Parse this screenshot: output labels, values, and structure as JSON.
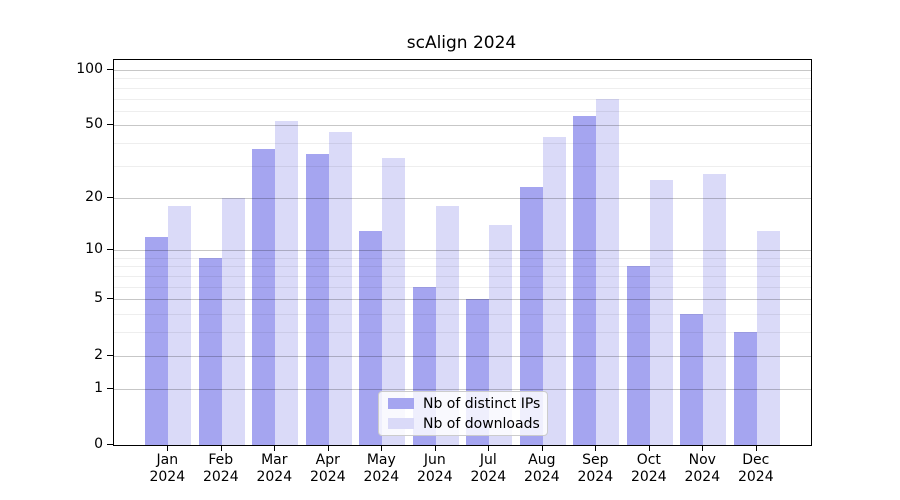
{
  "title": "scAlign 2024",
  "legend": {
    "items": [
      {
        "label": "Nb of distinct IPs",
        "color": "#a5a5f0"
      },
      {
        "label": "Nb of downloads",
        "color": "#dadaf8"
      }
    ]
  },
  "y_axis": {
    "tick_labels": [
      "0",
      "1",
      "2",
      "5",
      "10",
      "20",
      "50",
      "100"
    ],
    "major_ticks": [
      0,
      1,
      2,
      5,
      10,
      20,
      50,
      100
    ],
    "minor_gridlines": [
      3,
      4,
      6,
      7,
      8,
      9,
      30,
      40,
      60,
      70,
      80,
      90
    ]
  },
  "x_axis": {
    "year": "2024",
    "months": [
      "Jan",
      "Feb",
      "Mar",
      "Apr",
      "May",
      "Jun",
      "Jul",
      "Aug",
      "Sep",
      "Oct",
      "Nov",
      "Dec"
    ]
  },
  "chart_data": {
    "type": "bar",
    "title": "scAlign 2024",
    "categories": [
      "Jan 2024",
      "Feb 2024",
      "Mar 2024",
      "Apr 2024",
      "May 2024",
      "Jun 2024",
      "Jul 2024",
      "Aug 2024",
      "Sep 2024",
      "Oct 2024",
      "Nov 2024",
      "Dec 2024"
    ],
    "series": [
      {
        "name": "Nb of distinct IPs",
        "color": "#a5a5f0",
        "values": [
          12,
          9,
          37,
          35,
          13,
          6,
          5,
          23,
          56,
          8,
          4,
          3
        ]
      },
      {
        "name": "Nb of downloads",
        "color": "#dadaf8",
        "values": [
          18,
          20,
          53,
          46,
          33,
          18,
          14,
          43,
          70,
          25,
          27,
          13
        ]
      }
    ],
    "xlabel": "",
    "ylabel": "",
    "yscale": "log1p",
    "ylim": [
      0,
      113
    ],
    "yticks": [
      0,
      1,
      2,
      5,
      10,
      20,
      50,
      100
    ],
    "grid": true,
    "legend_position": "bottom-center-inside"
  }
}
